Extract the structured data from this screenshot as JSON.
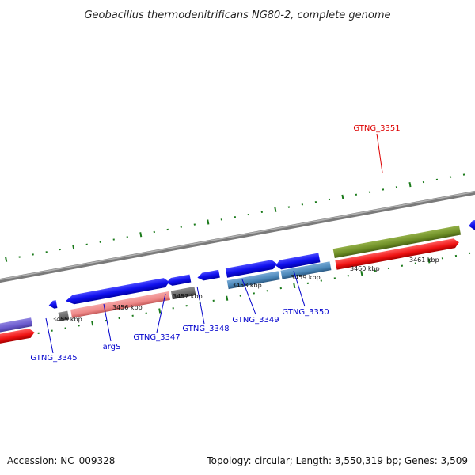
{
  "title": "Geobacillus thermodenitrificans NG80-2, complete genome",
  "footer": {
    "accession": "Accession: NC_009328",
    "summary": "Topology: circular; Length: 3,550,319 bp; Genes: 3,509"
  },
  "ticks": [
    "3455 kbp",
    "3456 kbp",
    "3457 kbp",
    "3458 kbp",
    "3459 kbp",
    "3460 kbp",
    "3461 kbp"
  ],
  "genes": [
    {
      "id": "GTNG_3345",
      "color": "#0000cc"
    },
    {
      "id": "argS",
      "color": "#0000cc"
    },
    {
      "id": "GTNG_3347",
      "color": "#0000cc"
    },
    {
      "id": "GTNG_3348",
      "color": "#0000cc"
    },
    {
      "id": "GTNG_3349",
      "color": "#0000cc"
    },
    {
      "id": "GTNG_3350",
      "color": "#0000cc"
    },
    {
      "id": "GTNG_3351",
      "color": "#dd0000"
    }
  ],
  "colors": {
    "backbone": "#7a7a7a",
    "tick": "#1a7a1a",
    "cds_blue": "#1010ee",
    "feature_pink": "#ee8888",
    "feature_gray": "#666666",
    "feature_steel": "#4a86b8",
    "feature_green": "#6e8e26",
    "feature_red": "#ee1111",
    "feature_purple": "#6a5acd"
  }
}
